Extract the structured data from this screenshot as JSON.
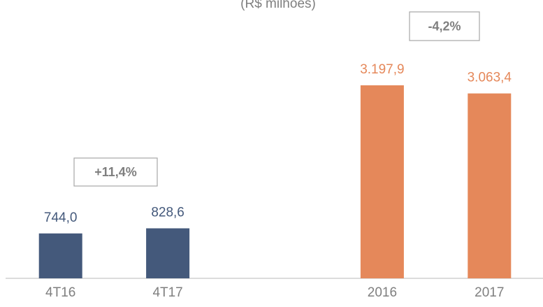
{
  "chart_data": {
    "type": "bar",
    "subtitle": "(R$ milhões)",
    "categories": [
      "4T16",
      "4T17",
      null,
      "2016",
      "2017"
    ],
    "values": [
      744.0,
      828.6,
      null,
      3197.9,
      3063.4
    ],
    "value_labels": [
      "744,0",
      "828,6",
      null,
      "3.197,9",
      "3.063,4"
    ],
    "colors": [
      "#44597b",
      "#44597b",
      null,
      "#e5885a",
      "#e5885a"
    ],
    "annotations": [
      "+11,4%",
      "-4,2%"
    ]
  }
}
